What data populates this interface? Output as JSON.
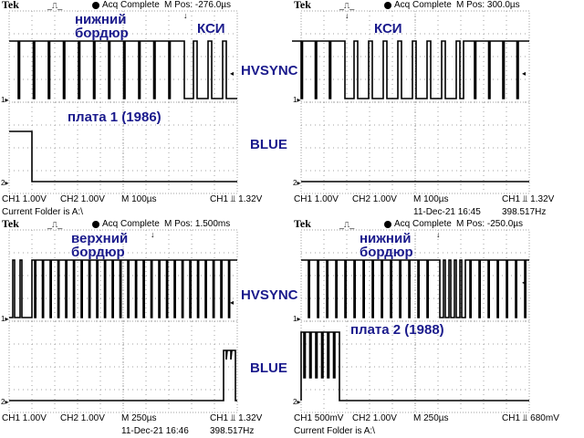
{
  "colors": {
    "annotation": "#1a1a8c",
    "trace": "#000000",
    "grid": "#a0a0a0"
  },
  "panels": [
    {
      "brand": "Tek",
      "trigger_icon": "pulse",
      "status": "Acq Complete",
      "m_pos": "M Pos: -276.0µs",
      "ch1": "CH1  1.00V",
      "ch2": "CH2  1.00V",
      "timebase": "M 100µs",
      "trigger": "CH1 ⫫ 1.32V",
      "footer_left": "Current Folder is A:\\",
      "footer_date": "",
      "footer_freq": "",
      "annotations": [
        "нижний\nбордюр",
        "КСИ",
        "HVSYNC",
        "плата 1 (1986)",
        "BLUE"
      ]
    },
    {
      "brand": "Tek",
      "trigger_icon": "pulse",
      "status": "Acq Complete",
      "m_pos": "M Pos: 300.0µs",
      "ch1": "CH1  1.00V",
      "ch2": "CH2  1.00V",
      "timebase": "M 100µs",
      "trigger": "CH1 ⫫ 1.32V",
      "footer_left": "",
      "footer_date": "11-Dec-21 16:45",
      "footer_freq": "398.517Hz",
      "annotations": [
        "КСИ"
      ]
    },
    {
      "brand": "Tek",
      "trigger_icon": "pulse",
      "status": "Acq Complete",
      "m_pos": "M Pos: 1.500ms",
      "ch1": "CH1  1.00V",
      "ch2": "CH2  1.00V",
      "timebase": "M 250µs",
      "trigger": "CH1 ⫫ 1.32V",
      "footer_left": "",
      "footer_date": "11-Dec-21 16:46",
      "footer_freq": "398.517Hz",
      "annotations": [
        "верхний\nбордюр",
        "HVSYNC",
        "BLUE"
      ]
    },
    {
      "brand": "Tek",
      "trigger_icon": "pulse",
      "status": "Acq Complete",
      "m_pos": "M Pos: -250.0µs",
      "ch1": "CH1  500mV",
      "ch2": "CH2  1.00V",
      "timebase": "M 250µs",
      "trigger": "CH1 ⫫ 680mV",
      "footer_left": "Current Folder is A:\\",
      "footer_date": "",
      "footer_freq": "",
      "annotations": [
        "нижний\nбордюр",
        "плата 2 (1988)"
      ]
    }
  ]
}
